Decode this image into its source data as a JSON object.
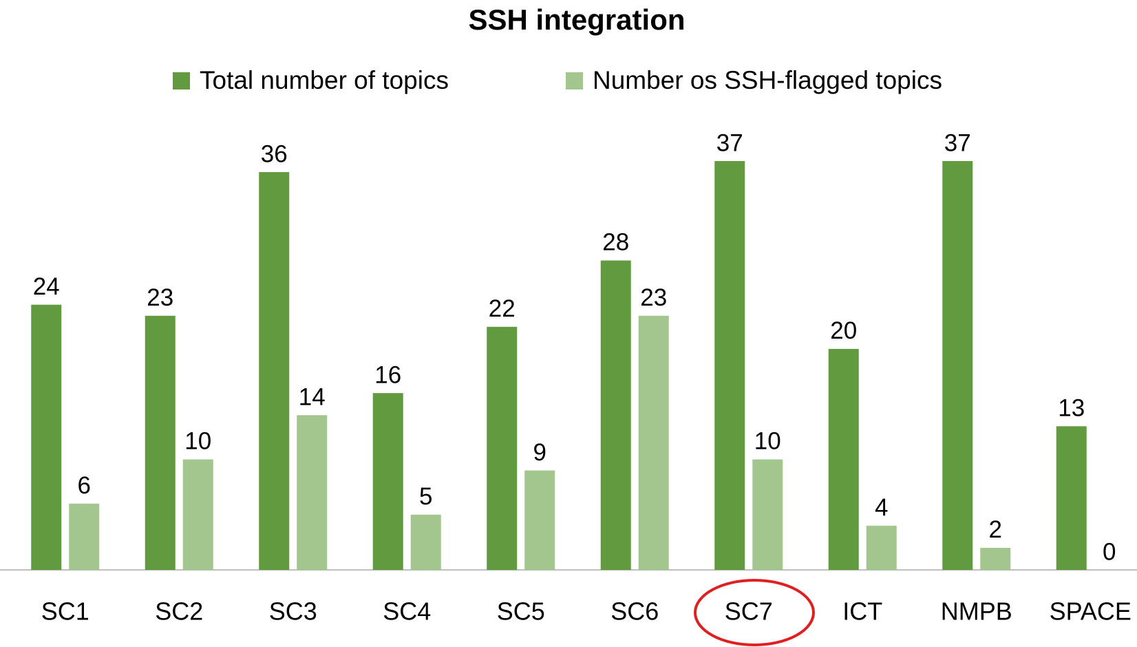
{
  "chart_data": {
    "type": "bar",
    "title": "SSH integration",
    "categories": [
      "SC1",
      "SC2",
      "SC3",
      "SC4",
      "SC5",
      "SC6",
      "SC7",
      "ICT",
      "NMPB",
      "SPACE"
    ],
    "series": [
      {
        "name": "Total number of topics",
        "color": "#629a3f",
        "values": [
          24,
          23,
          36,
          16,
          22,
          28,
          37,
          20,
          37,
          13
        ]
      },
      {
        "name": "Number os SSH-flagged topics",
        "color": "#a3c68f",
        "values": [
          6,
          10,
          14,
          5,
          9,
          23,
          10,
          4,
          2,
          0
        ]
      }
    ],
    "legend": "top"
  }
}
